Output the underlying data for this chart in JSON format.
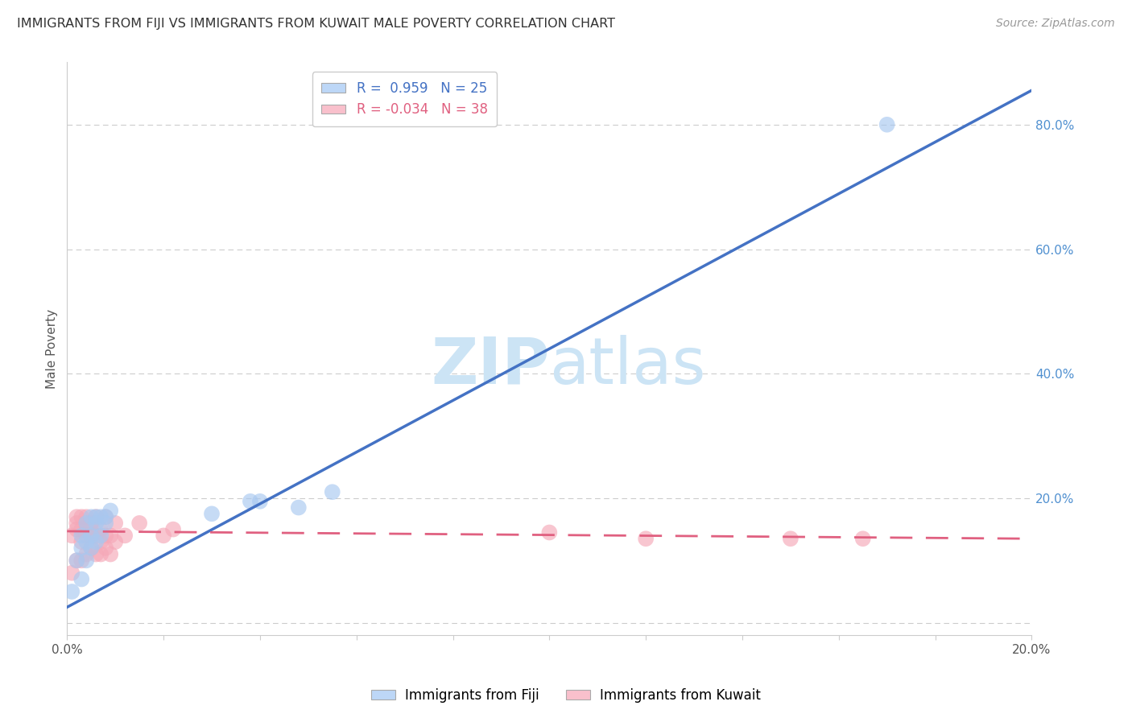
{
  "title": "IMMIGRANTS FROM FIJI VS IMMIGRANTS FROM KUWAIT MALE POVERTY CORRELATION CHART",
  "source": "Source: ZipAtlas.com",
  "ylabel": "Male Poverty",
  "xlim": [
    0.0,
    0.2
  ],
  "ylim": [
    -0.02,
    0.9
  ],
  "xticks": [
    0.0,
    0.02,
    0.04,
    0.06,
    0.08,
    0.1,
    0.12,
    0.14,
    0.16,
    0.18,
    0.2
  ],
  "yticks_right": [
    0.0,
    0.2,
    0.4,
    0.6,
    0.8
  ],
  "ytick_labels_right": [
    "",
    "20.0%",
    "40.0%",
    "60.0%",
    "80.0%"
  ],
  "xtick_labels": [
    "0.0%",
    "",
    "",
    "",
    "",
    "",
    "",
    "",
    "",
    "",
    "20.0%"
  ],
  "fiji_R": 0.959,
  "fiji_N": 25,
  "kuwait_R": -0.034,
  "kuwait_N": 38,
  "fiji_color": "#a8c8f0",
  "kuwait_color": "#f5a8b8",
  "fiji_line_color": "#4472c4",
  "kuwait_line_color": "#e06080",
  "legend_fiji_color": "#bdd7f7",
  "legend_kuwait_color": "#f9c0cc",
  "watermark_color": "#cce4f5",
  "background_color": "#ffffff",
  "grid_color": "#cccccc",
  "fiji_scatter_x": [
    0.001,
    0.002,
    0.003,
    0.003,
    0.004,
    0.004,
    0.005,
    0.005,
    0.006,
    0.006,
    0.007,
    0.007,
    0.008,
    0.008,
    0.009,
    0.003,
    0.004,
    0.005,
    0.006,
    0.03,
    0.038,
    0.04,
    0.048,
    0.055,
    0.17
  ],
  "fiji_scatter_y": [
    0.05,
    0.1,
    0.07,
    0.14,
    0.1,
    0.16,
    0.12,
    0.17,
    0.13,
    0.16,
    0.14,
    0.17,
    0.16,
    0.17,
    0.18,
    0.12,
    0.13,
    0.14,
    0.17,
    0.175,
    0.195,
    0.195,
    0.185,
    0.21,
    0.8
  ],
  "kuwait_scatter_x": [
    0.001,
    0.001,
    0.002,
    0.002,
    0.002,
    0.002,
    0.003,
    0.003,
    0.003,
    0.003,
    0.004,
    0.004,
    0.004,
    0.004,
    0.005,
    0.005,
    0.005,
    0.006,
    0.006,
    0.006,
    0.007,
    0.007,
    0.007,
    0.008,
    0.008,
    0.008,
    0.009,
    0.009,
    0.01,
    0.01,
    0.012,
    0.015,
    0.02,
    0.022,
    0.1,
    0.12,
    0.15,
    0.165
  ],
  "kuwait_scatter_y": [
    0.08,
    0.14,
    0.1,
    0.15,
    0.16,
    0.17,
    0.1,
    0.13,
    0.15,
    0.17,
    0.11,
    0.14,
    0.15,
    0.17,
    0.12,
    0.15,
    0.16,
    0.11,
    0.14,
    0.17,
    0.11,
    0.13,
    0.15,
    0.12,
    0.14,
    0.17,
    0.11,
    0.14,
    0.13,
    0.16,
    0.14,
    0.16,
    0.14,
    0.15,
    0.145,
    0.135,
    0.135,
    0.135
  ],
  "fiji_line_x": [
    0.0,
    0.2
  ],
  "fiji_line_y": [
    0.025,
    0.855
  ],
  "kuwait_line_x": [
    0.0,
    0.2
  ],
  "kuwait_line_y": [
    0.147,
    0.135
  ]
}
